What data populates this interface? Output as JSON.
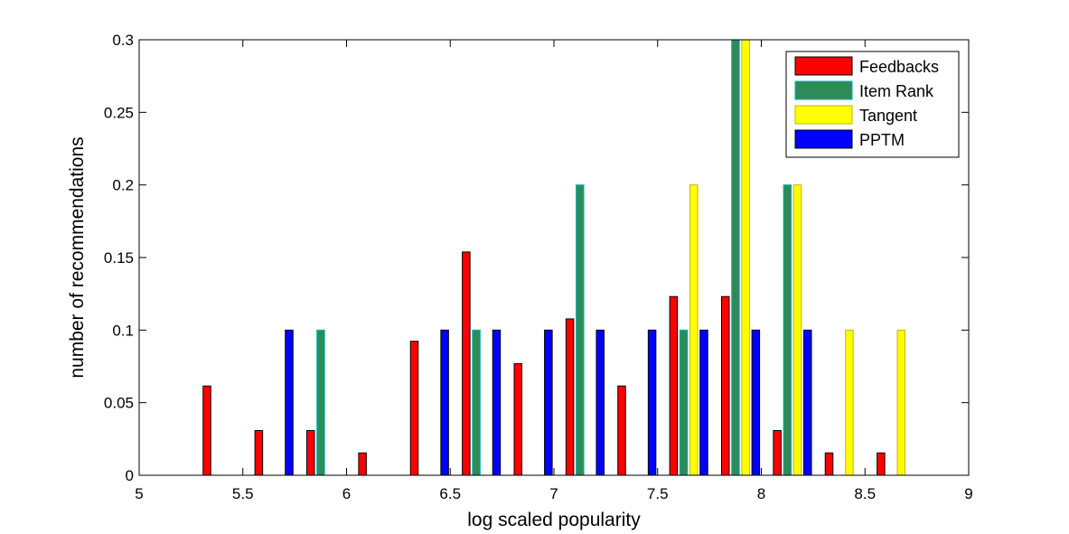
{
  "chart_data": {
    "type": "bar",
    "xlabel": "log scaled popularity",
    "ylabel": "number of recommendations",
    "xlim": [
      5,
      9
    ],
    "ylim": [
      0,
      0.3
    ],
    "xticks": [
      "5",
      "5.5",
      "6",
      "6.5",
      "7",
      "7.5",
      "8",
      "8.5",
      "9"
    ],
    "yticks": [
      "0",
      "0.05",
      "0.1",
      "0.15",
      "0.2",
      "0.25",
      "0.3"
    ],
    "grid": false,
    "legend_position": "top-right",
    "bins": [
      5.15,
      5.4,
      5.65,
      5.9,
      6.15,
      6.4,
      6.65,
      6.9,
      7.15,
      7.4,
      7.65,
      7.9,
      8.15,
      8.4,
      8.65,
      8.9
    ],
    "series": [
      {
        "name": "Feedbacks",
        "color": "#ff0000",
        "values": [
          0,
          0.0615,
          0.0308,
          0.0308,
          0.0154,
          0.0923,
          0.1538,
          0.0769,
          0.1077,
          0.0615,
          0.1231,
          0.1231,
          0.0308,
          0.0154,
          0.0154,
          0
        ]
      },
      {
        "name": "Item Rank",
        "color": "#2e8b57",
        "stroke": "#00b3b3",
        "values": [
          0,
          0,
          0,
          0.1,
          0,
          0,
          0.1,
          0,
          0.2,
          0,
          0.1,
          0.3,
          0.2,
          0,
          0,
          0
        ]
      },
      {
        "name": "Tangent",
        "color": "#ffff00",
        "stroke": "#c8b400",
        "values": [
          0,
          0,
          0,
          0,
          0,
          0,
          0,
          0,
          0,
          0,
          0.2,
          0.3,
          0.2,
          0.1,
          0.1,
          0
        ]
      },
      {
        "name": "PPTM",
        "color": "#0000ff",
        "values": [
          0,
          0,
          0.1,
          0,
          0,
          0.1,
          0.1,
          0.1,
          0.1,
          0.1,
          0.1,
          0.1,
          0.1,
          0,
          0,
          0
        ]
      }
    ]
  }
}
